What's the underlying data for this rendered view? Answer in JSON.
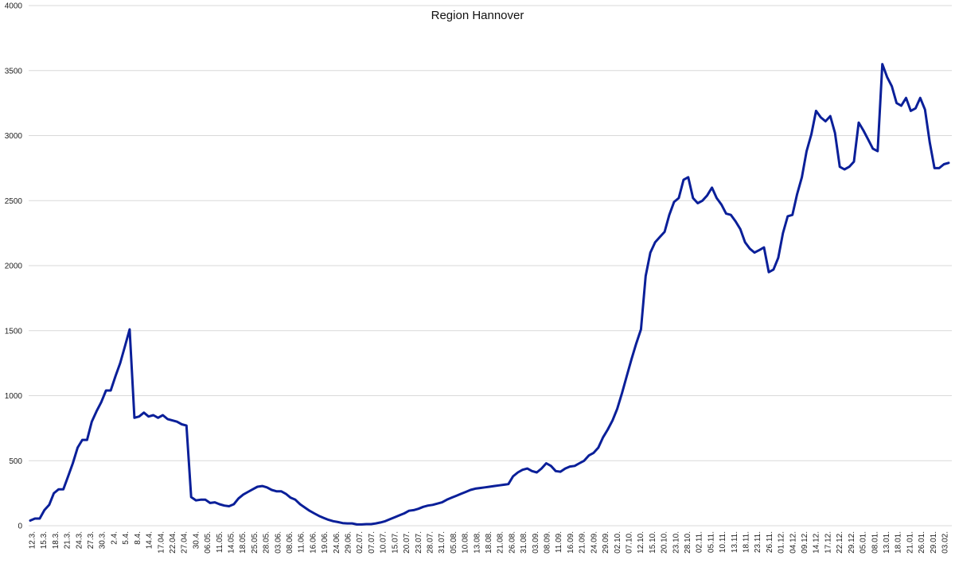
{
  "chart_data": {
    "type": "line",
    "title": "Region Hannover",
    "xlabel": "",
    "ylabel": "",
    "ylim": [
      0,
      4000
    ],
    "yticks": [
      0,
      500,
      1000,
      1500,
      2000,
      2500,
      3000,
      3500,
      4000
    ],
    "grid": true,
    "legend": "none",
    "line_color": "#0a1f99",
    "x_tick_labels": [
      "12.3.",
      "15.3.",
      "18.3.",
      "21.3.",
      "24.3.",
      "27.3.",
      "30.3.",
      "2.4.",
      "5.4.",
      "8.4.",
      "14.4.",
      "17.04.",
      "22.04.",
      "27.04.",
      "30.4.",
      "06.05.",
      "11.05.",
      "14.05.",
      "18.05.",
      "25.05.",
      "28.05.",
      "03.06.",
      "08.06.",
      "11.06.",
      "16.06.",
      "19.06.",
      "24.06.",
      "29.06.",
      "02.07.",
      "07.07.",
      "10.07.",
      "15.07.",
      "20.07.",
      "23.07.",
      "28.07.",
      "31.07.",
      "05.08.",
      "10.08.",
      "13.08.",
      "18.08.",
      "21.08.",
      "26.08.",
      "31.08.",
      "03.09.",
      "08.09.",
      "11.09.",
      "16.09.",
      "21.09.",
      "24.09.",
      "29.09.",
      "02.10.",
      "07.10.",
      "12.10.",
      "15.10.",
      "20.10.",
      "23.10.",
      "28.10.",
      "02.11.",
      "05.11.",
      "10.11.",
      "13.11.",
      "18.11.",
      "23.11.",
      "26.11.",
      "01.12.",
      "04.12.",
      "09.12.",
      "14.12.",
      "17.12.",
      "22.12.",
      "29.12.",
      "05.01.",
      "08.01.",
      "13.01.",
      "18.01.",
      "21.01.",
      "26.01.",
      "29.01.",
      "03.02."
    ],
    "values": [
      40,
      55,
      55,
      120,
      160,
      250,
      280,
      280,
      380,
      480,
      600,
      660,
      660,
      800,
      880,
      950,
      1040,
      1040,
      1150,
      1250,
      1380,
      1510,
      830,
      840,
      870,
      840,
      850,
      830,
      850,
      820,
      810,
      800,
      780,
      770,
      220,
      195,
      200,
      200,
      175,
      180,
      165,
      155,
      150,
      165,
      210,
      240,
      260,
      280,
      300,
      305,
      295,
      275,
      265,
      265,
      245,
      215,
      200,
      165,
      140,
      115,
      95,
      75,
      60,
      45,
      35,
      28,
      20,
      18,
      18,
      10,
      10,
      12,
      12,
      18,
      25,
      35,
      50,
      65,
      80,
      95,
      115,
      120,
      130,
      145,
      155,
      160,
      170,
      180,
      200,
      215,
      230,
      245,
      260,
      275,
      285,
      290,
      295,
      300,
      305,
      310,
      315,
      320,
      380,
      410,
      430,
      440,
      420,
      410,
      440,
      480,
      460,
      420,
      415,
      440,
      455,
      460,
      480,
      500,
      540,
      560,
      600,
      680,
      740,
      810,
      900,
      1020,
      1150,
      1280,
      1400,
      1510,
      1920,
      2100,
      2180,
      2220,
      2260,
      2390,
      2490,
      2520,
      2660,
      2680,
      2520,
      2480,
      2500,
      2540,
      2600,
      2520,
      2470,
      2400,
      2390,
      2340,
      2280,
      2180,
      2130,
      2100,
      2120,
      2140,
      1950,
      1970,
      2060,
      2250,
      2380,
      2390,
      2550,
      2680,
      2880,
      3010,
      3190,
      3140,
      3110,
      3150,
      3020,
      2760,
      2740,
      2760,
      2800,
      3100,
      3040,
      2970,
      2900,
      2880,
      3550,
      3450,
      3380,
      3250,
      3230,
      3290,
      3190,
      3210,
      3290,
      3200,
      2950,
      2750,
      2750,
      2780,
      2790
    ]
  }
}
